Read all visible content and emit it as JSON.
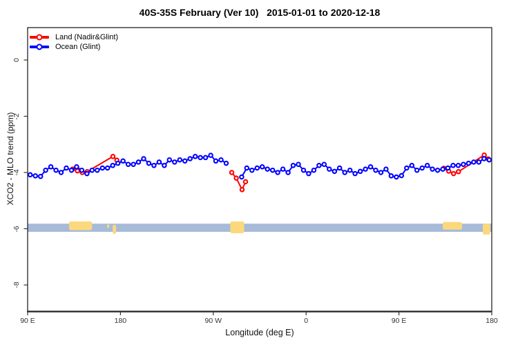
{
  "figure": {
    "background": "#ffffff"
  },
  "legend": {
    "position": "top-left",
    "items": [
      {
        "label": "Land (Nadir&Glint)",
        "color": "#ff0000"
      },
      {
        "label": "Ocean (Glint)",
        "color": "#0000ff"
      }
    ]
  },
  "chart_data": {
    "type": "line",
    "title": "40S-35S February (Ver 10)   2015-01-01 to 2020-12-18",
    "xlabel": "Longitude (deg E)",
    "ylabel": "XCO2 - MLO trend (ppm)",
    "xlim": [
      90,
      540
    ],
    "ylim": [
      -8.9,
      1.15
    ],
    "grid": false,
    "x_ticks": [
      {
        "lon": 90,
        "label": "90 E"
      },
      {
        "lon": 180,
        "label": "180"
      },
      {
        "lon": 270,
        "label": "90 W"
      },
      {
        "lon": 360,
        "label": "0"
      },
      {
        "lon": 450,
        "label": "90 E"
      },
      {
        "lon": 540,
        "label": "180"
      }
    ],
    "y_ticks": [
      {
        "value": 0,
        "label": "0"
      },
      {
        "value": -2,
        "label": "-2"
      },
      {
        "value": -4,
        "label": "-4"
      },
      {
        "value": -6,
        "label": "-6"
      },
      {
        "value": -8,
        "label": "-8"
      }
    ],
    "series": [
      {
        "name": "Land (Nadir&Glint)",
        "color": "#ff0000",
        "segments": [
          [
            [
              133.5,
              -3.88
            ],
            [
              138.3,
              -3.94
            ],
            [
              143.0,
              -4.0
            ],
            [
              147.7,
              -3.97
            ],
            [
              172.7,
              -3.43
            ],
            [
              176.5,
              -3.56
            ]
          ],
          [
            [
              287.9,
              -4.0
            ],
            [
              292.3,
              -4.2
            ],
            [
              297.9,
              -4.61
            ],
            [
              301.3,
              -4.33
            ]
          ],
          [
            [
              493.6,
              -3.85
            ],
            [
              498.3,
              -3.95
            ],
            [
              503.0,
              -4.04
            ],
            [
              507.7,
              -3.97
            ],
            [
              532.7,
              -3.38
            ],
            [
              536.5,
              -3.52
            ]
          ]
        ]
      },
      {
        "name": "Ocean (Glint)",
        "color": "#0000ff",
        "segments": [
          [
            [
              92.5,
              -4.08
            ],
            [
              97.5,
              -4.12
            ],
            [
              102.5,
              -4.14
            ],
            [
              107.5,
              -3.92
            ],
            [
              112.5,
              -3.8
            ],
            [
              117.5,
              -3.92
            ],
            [
              122.5,
              -4.0
            ],
            [
              127.5,
              -3.84
            ],
            [
              132.5,
              -3.92
            ],
            [
              137.5,
              -3.8
            ],
            [
              142.5,
              -3.92
            ],
            [
              147.5,
              -4.04
            ],
            [
              152.5,
              -3.92
            ],
            [
              157.5,
              -3.92
            ],
            [
              162.5,
              -3.84
            ],
            [
              167.5,
              -3.84
            ],
            [
              172.5,
              -3.75
            ],
            [
              177.5,
              -3.67
            ],
            [
              182.5,
              -3.59
            ],
            [
              187.5,
              -3.71
            ],
            [
              192.5,
              -3.71
            ],
            [
              197.5,
              -3.63
            ],
            [
              202.5,
              -3.51
            ],
            [
              207.5,
              -3.67
            ],
            [
              212.5,
              -3.75
            ],
            [
              217.5,
              -3.63
            ],
            [
              222.5,
              -3.75
            ],
            [
              227.5,
              -3.55
            ],
            [
              232.5,
              -3.63
            ],
            [
              237.5,
              -3.55
            ],
            [
              242.5,
              -3.59
            ],
            [
              247.5,
              -3.51
            ],
            [
              252.5,
              -3.43
            ],
            [
              257.5,
              -3.47
            ],
            [
              262.5,
              -3.47
            ],
            [
              267.5,
              -3.39
            ],
            [
              272.5,
              -3.59
            ],
            [
              277.5,
              -3.55
            ],
            [
              282.5,
              -3.67
            ]
          ],
          [
            [
              297.5,
              -4.16
            ],
            [
              302.5,
              -3.84
            ],
            [
              307.5,
              -3.92
            ],
            [
              312.5,
              -3.84
            ],
            [
              317.5,
              -3.8
            ],
            [
              322.5,
              -3.88
            ],
            [
              327.5,
              -3.92
            ],
            [
              332.5,
              -4.0
            ],
            [
              337.5,
              -3.88
            ],
            [
              342.5,
              -4.0
            ],
            [
              347.5,
              -3.75
            ],
            [
              352.5,
              -3.71
            ],
            [
              357.5,
              -3.92
            ],
            [
              362.5,
              -4.04
            ],
            [
              367.5,
              -3.92
            ],
            [
              372.5,
              -3.75
            ],
            [
              377.5,
              -3.71
            ],
            [
              382.5,
              -3.88
            ],
            [
              387.5,
              -3.96
            ],
            [
              392.5,
              -3.84
            ],
            [
              397.5,
              -4.0
            ],
            [
              402.5,
              -3.92
            ],
            [
              407.5,
              -4.04
            ],
            [
              412.5,
              -3.96
            ],
            [
              417.5,
              -3.88
            ],
            [
              422.5,
              -3.8
            ],
            [
              427.5,
              -3.92
            ],
            [
              432.5,
              -4.0
            ],
            [
              437.5,
              -3.88
            ],
            [
              442.5,
              -4.12
            ],
            [
              447.5,
              -4.16
            ],
            [
              452.5,
              -4.11
            ],
            [
              457.5,
              -3.84
            ],
            [
              462.5,
              -3.75
            ],
            [
              467.5,
              -3.92
            ],
            [
              472.5,
              -3.84
            ],
            [
              477.5,
              -3.75
            ],
            [
              482.5,
              -3.88
            ],
            [
              487.5,
              -3.92
            ],
            [
              492.5,
              -3.88
            ],
            [
              497.5,
              -3.84
            ],
            [
              502.5,
              -3.75
            ],
            [
              507.5,
              -3.75
            ],
            [
              512.5,
              -3.71
            ],
            [
              517.5,
              -3.67
            ],
            [
              522.5,
              -3.63
            ],
            [
              527.5,
              -3.63
            ],
            [
              532.5,
              -3.51
            ],
            [
              537.5,
              -3.55
            ]
          ]
        ]
      }
    ],
    "map_strip": {
      "description": "latitude-band land/ocean strip",
      "ocean_color": "#a7bbd8",
      "land_color": "#fcd87d",
      "v_top": -5.82,
      "v_bottom": -6.11,
      "land_blocks": [
        {
          "lon_start": 130.2,
          "lon_end": 152.4,
          "v_top": -5.74,
          "v_bottom": -6.05
        },
        {
          "lon_start": 167.0,
          "lon_end": 169.2,
          "v_top": -5.84,
          "v_bottom": -5.98
        },
        {
          "lon_start": 172.5,
          "lon_end": 175.8,
          "v_top": -5.86,
          "v_bottom": -6.19
        },
        {
          "lon_start": 286.5,
          "lon_end": 299.9,
          "v_top": -5.74,
          "v_bottom": -6.16
        },
        {
          "lon_start": 492.4,
          "lon_end": 511.2,
          "v_top": -5.76,
          "v_bottom": -6.03
        },
        {
          "lon_start": 531.3,
          "lon_end": 538.5,
          "v_top": -5.82,
          "v_bottom": -6.21
        }
      ]
    }
  }
}
